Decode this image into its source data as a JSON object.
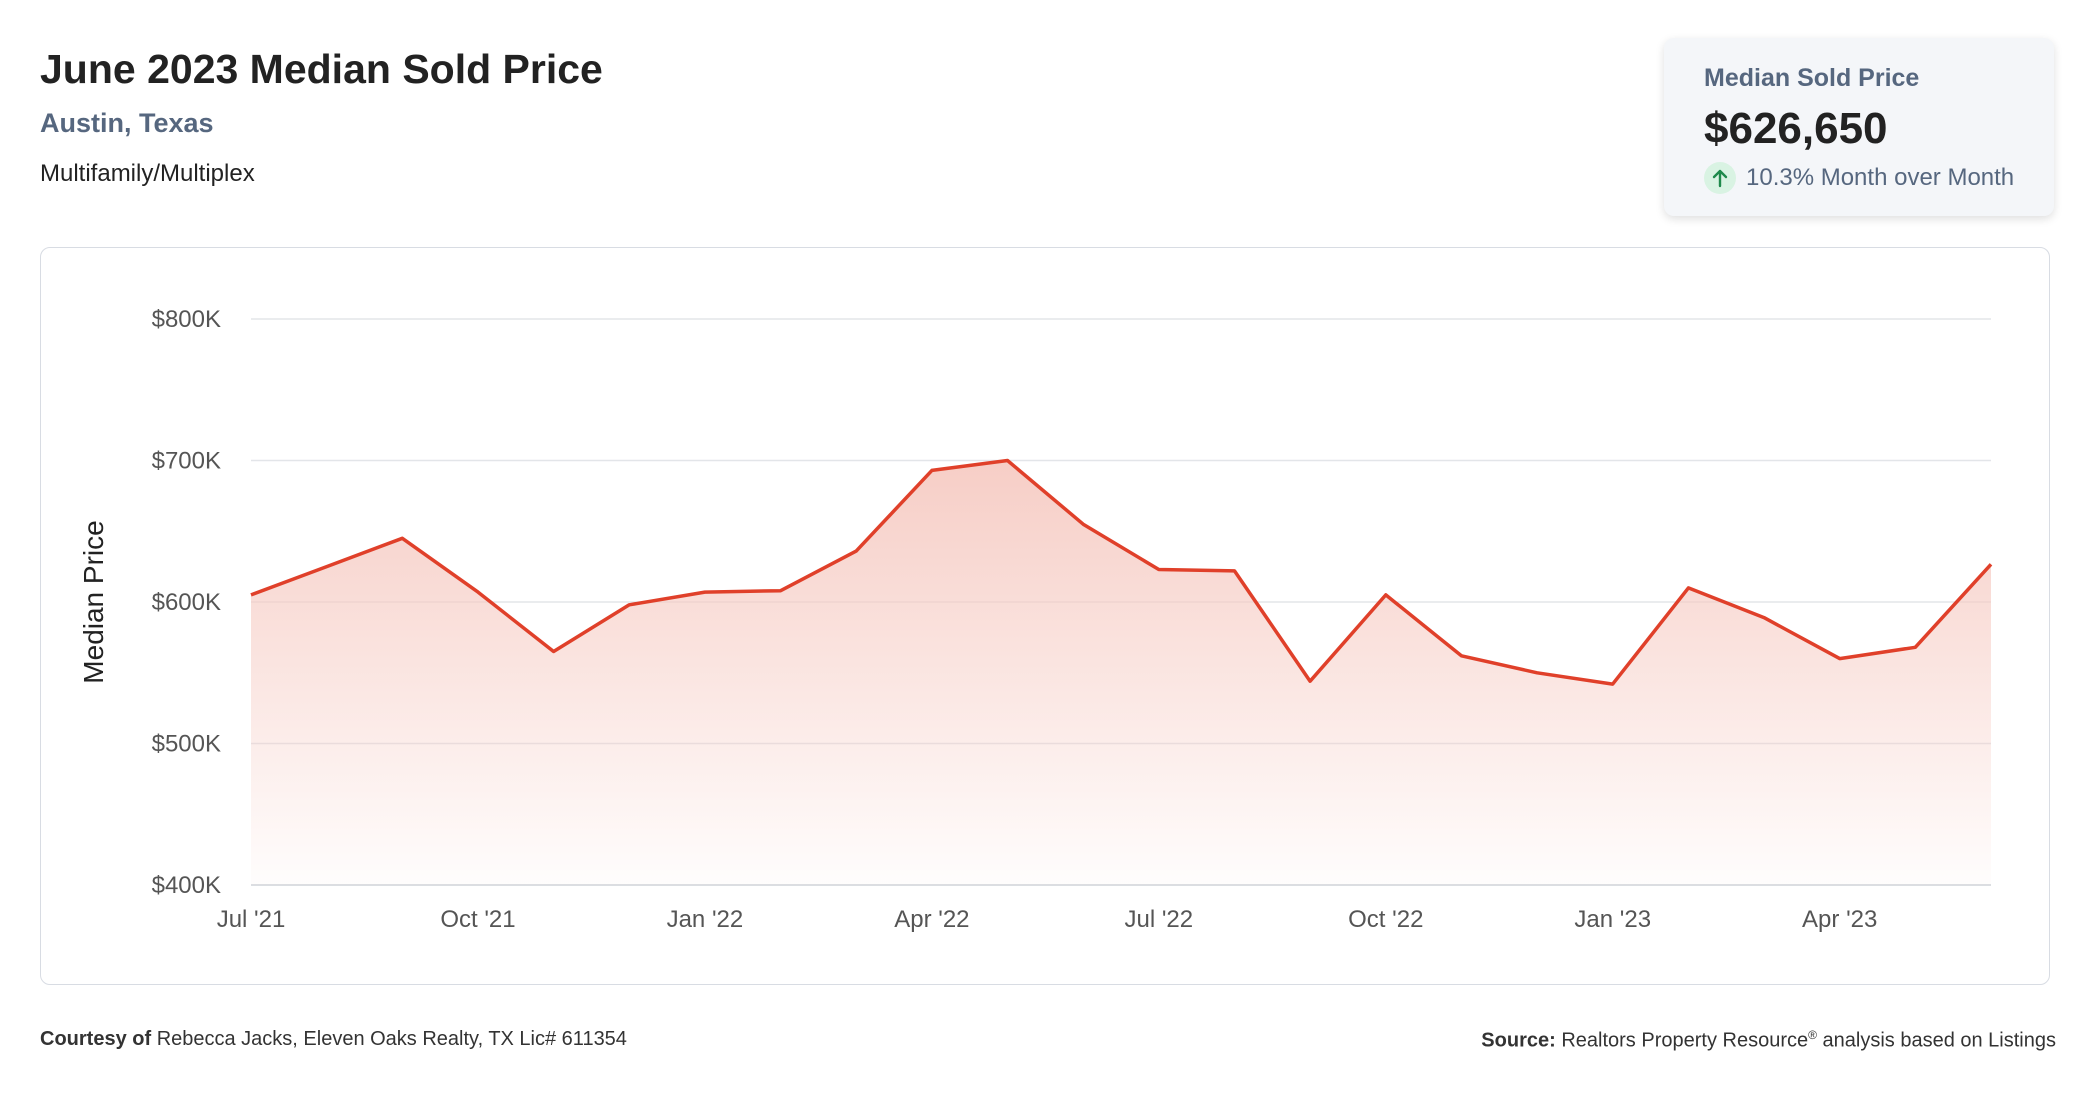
{
  "header": {
    "title": "June 2023 Median Sold Price",
    "location": "Austin, Texas",
    "property_type": "Multifamily/Multiplex"
  },
  "kpi": {
    "label": "Median Sold Price",
    "value": "$626,650",
    "change_text": "10.3% Month over Month",
    "change_icon": "arrow-up-icon"
  },
  "colors": {
    "line": "#e0402a",
    "area_top": "#f6cbc3",
    "kpi_arrow": "#1f8a4c",
    "accent_text": "#56677f"
  },
  "chart_data": {
    "type": "area",
    "x": [
      "Jul '21",
      "Aug '21",
      "Sep '21",
      "Oct '21",
      "Nov '21",
      "Dec '21",
      "Jan '22",
      "Feb '22",
      "Mar '22",
      "Apr '22",
      "May '22",
      "Jun '22",
      "Jul '22",
      "Aug '22",
      "Sep '22",
      "Oct '22",
      "Nov '22",
      "Dec '22",
      "Jan '23",
      "Feb '23",
      "Mar '23",
      "Apr '23",
      "May '23",
      "Jun '23"
    ],
    "series": [
      {
        "values": [
          605000,
          625000,
          645000,
          607000,
          565000,
          598000,
          607000,
          608000,
          636000,
          693000,
          700000,
          655000,
          623000,
          622000,
          544000,
          605000,
          562000,
          550000,
          542000,
          610000,
          589000,
          560000,
          568000,
          626650
        ]
      }
    ],
    "xticks": [
      "Jul '21",
      "Oct '21",
      "Jan '22",
      "Apr '22",
      "Jul '22",
      "Oct '22",
      "Jan '23",
      "Apr '23"
    ],
    "yticks": [
      400000,
      500000,
      600000,
      700000,
      800000
    ],
    "ytick_labels": [
      "$400K",
      "$500K",
      "$600K",
      "$700K",
      "$800K"
    ],
    "ylabel": "Median Price",
    "xlabel": "",
    "ylim": [
      400000,
      800000
    ],
    "grid": true
  },
  "footer": {
    "courtesy_label": "Courtesy of",
    "courtesy_text": "Rebecca Jacks, Eleven Oaks Realty, TX Lic# 611354",
    "source_label": "Source:",
    "source_name": "Realtors Property Resource",
    "source_mark": "®",
    "source_rest": "analysis based on Listings"
  }
}
